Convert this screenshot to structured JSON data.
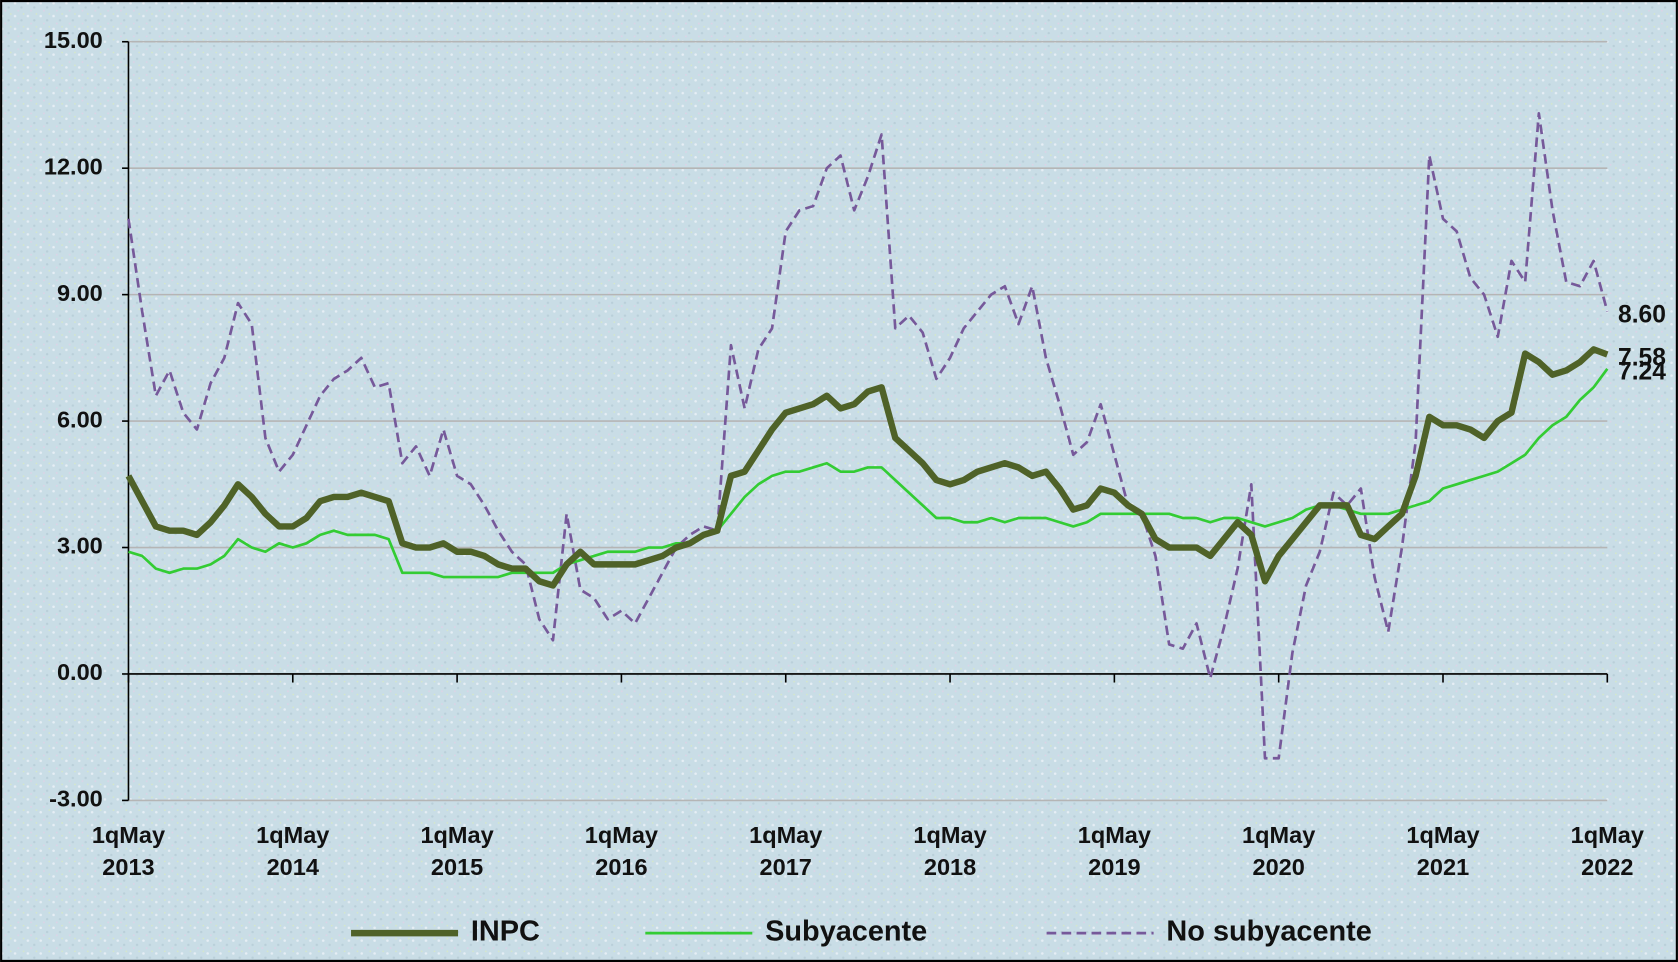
{
  "chart_data": {
    "type": "line",
    "categories": [
      "1qMay 2013",
      null,
      null,
      null,
      null,
      null,
      null,
      null,
      null,
      null,
      null,
      null,
      "1qMay 2014",
      null,
      null,
      null,
      null,
      null,
      null,
      null,
      null,
      null,
      null,
      null,
      "1qMay 2015",
      null,
      null,
      null,
      null,
      null,
      null,
      null,
      null,
      null,
      null,
      null,
      "1qMay 2016",
      null,
      null,
      null,
      null,
      null,
      null,
      null,
      null,
      null,
      null,
      null,
      "1qMay 2017",
      null,
      null,
      null,
      null,
      null,
      null,
      null,
      null,
      null,
      null,
      null,
      "1qMay 2018",
      null,
      null,
      null,
      null,
      null,
      null,
      null,
      null,
      null,
      null,
      null,
      "1qMay 2019",
      null,
      null,
      null,
      null,
      null,
      null,
      null,
      null,
      null,
      null,
      null,
      "1qMay 2020",
      null,
      null,
      null,
      null,
      null,
      null,
      null,
      null,
      null,
      null,
      null,
      "1qMay 2021",
      null,
      null,
      null,
      null,
      null,
      null,
      null,
      null,
      null,
      null,
      null,
      "1qMay 2022"
    ],
    "ylim": [
      -3,
      15
    ],
    "yticks": [
      {
        "value": -3,
        "label": "-3.00"
      },
      {
        "value": 0,
        "label": "0.00"
      },
      {
        "value": 3,
        "label": "3.00"
      },
      {
        "value": 6,
        "label": "6.00"
      },
      {
        "value": 9,
        "label": "9.00"
      },
      {
        "value": 12,
        "label": "12.00"
      },
      {
        "value": 15,
        "label": "15.00"
      }
    ],
    "grid": true,
    "legend": "bottom",
    "series": [
      {
        "name": "INPC",
        "color": "#4f6228",
        "style": "solid",
        "values": [
          4.7,
          4.1,
          3.5,
          3.4,
          3.4,
          3.3,
          3.6,
          4.0,
          4.5,
          4.2,
          3.8,
          3.5,
          3.5,
          3.7,
          4.1,
          4.2,
          4.2,
          4.3,
          4.2,
          4.1,
          3.1,
          3.0,
          3.0,
          3.1,
          2.9,
          2.9,
          2.8,
          2.6,
          2.5,
          2.5,
          2.2,
          2.1,
          2.6,
          2.9,
          2.6,
          2.6,
          2.6,
          2.6,
          2.7,
          2.8,
          3.0,
          3.1,
          3.3,
          3.4,
          4.7,
          4.8,
          5.3,
          5.8,
          6.2,
          6.3,
          6.4,
          6.6,
          6.3,
          6.4,
          6.7,
          6.8,
          5.6,
          5.3,
          5.0,
          4.6,
          4.5,
          4.6,
          4.8,
          4.9,
          5.0,
          4.9,
          4.7,
          4.8,
          4.4,
          3.9,
          4.0,
          4.4,
          4.3,
          4.0,
          3.8,
          3.2,
          3.0,
          3.0,
          3.0,
          2.8,
          3.2,
          3.6,
          3.3,
          2.2,
          2.8,
          3.2,
          3.6,
          4.0,
          4.0,
          4.0,
          3.3,
          3.2,
          3.5,
          3.8,
          4.7,
          6.1,
          5.9,
          5.9,
          5.8,
          5.6,
          6.0,
          6.2,
          7.6,
          7.4,
          7.1,
          7.2,
          7.4,
          7.7,
          7.58
        ],
        "value_labels": [
          null,
          null,
          null,
          null,
          null,
          null,
          null,
          null,
          null,
          null,
          null,
          null,
          null,
          null,
          null,
          null,
          null,
          null,
          null,
          null,
          null,
          null,
          null,
          null,
          null,
          null,
          null,
          null,
          null,
          null,
          null,
          null,
          null,
          null,
          null,
          null,
          null,
          null,
          null,
          null,
          null,
          null,
          null,
          null,
          null,
          null,
          null,
          null,
          null,
          null,
          null,
          null,
          null,
          null,
          null,
          null,
          null,
          null,
          null,
          null,
          null,
          null,
          null,
          null,
          null,
          null,
          null,
          null,
          null,
          null,
          null,
          null,
          null,
          null,
          null,
          null,
          null,
          null,
          null,
          null,
          null,
          null,
          null,
          null,
          null,
          null,
          null,
          null,
          null,
          null,
          null,
          null,
          null,
          null,
          null,
          null,
          null,
          null,
          null,
          null,
          null,
          null,
          null,
          null,
          null,
          null,
          null,
          null,
          "7.58"
        ]
      },
      {
        "name": "Subyacente",
        "color": "#33cc33",
        "style": "thin",
        "values": [
          2.9,
          2.8,
          2.5,
          2.4,
          2.5,
          2.5,
          2.6,
          2.8,
          3.2,
          3.0,
          2.9,
          3.1,
          3.0,
          3.1,
          3.3,
          3.4,
          3.3,
          3.3,
          3.3,
          3.2,
          2.4,
          2.4,
          2.4,
          2.3,
          2.3,
          2.3,
          2.3,
          2.3,
          2.4,
          2.4,
          2.4,
          2.4,
          2.6,
          2.7,
          2.8,
          2.9,
          2.9,
          2.9,
          3.0,
          3.0,
          3.1,
          3.1,
          3.3,
          3.4,
          3.8,
          4.2,
          4.5,
          4.7,
          4.8,
          4.8,
          4.9,
          5.0,
          4.8,
          4.8,
          4.9,
          4.9,
          4.6,
          4.3,
          4.0,
          3.7,
          3.7,
          3.6,
          3.6,
          3.7,
          3.6,
          3.7,
          3.7,
          3.7,
          3.6,
          3.5,
          3.6,
          3.8,
          3.8,
          3.8,
          3.8,
          3.8,
          3.8,
          3.7,
          3.7,
          3.6,
          3.7,
          3.7,
          3.6,
          3.5,
          3.6,
          3.7,
          3.9,
          4.0,
          4.0,
          3.9,
          3.8,
          3.8,
          3.8,
          3.9,
          4.0,
          4.1,
          4.4,
          4.5,
          4.6,
          4.7,
          4.8,
          5.0,
          5.2,
          5.6,
          5.9,
          6.1,
          6.5,
          6.8,
          7.24
        ],
        "value_labels": [
          null,
          null,
          null,
          null,
          null,
          null,
          null,
          null,
          null,
          null,
          null,
          null,
          null,
          null,
          null,
          null,
          null,
          null,
          null,
          null,
          null,
          null,
          null,
          null,
          null,
          null,
          null,
          null,
          null,
          null,
          null,
          null,
          null,
          null,
          null,
          null,
          null,
          null,
          null,
          null,
          null,
          null,
          null,
          null,
          null,
          null,
          null,
          null,
          null,
          null,
          null,
          null,
          null,
          null,
          null,
          null,
          null,
          null,
          null,
          null,
          null,
          null,
          null,
          null,
          null,
          null,
          null,
          null,
          null,
          null,
          null,
          null,
          null,
          null,
          null,
          null,
          null,
          null,
          null,
          null,
          null,
          null,
          null,
          null,
          null,
          null,
          null,
          null,
          null,
          null,
          null,
          null,
          null,
          null,
          null,
          null,
          null,
          null,
          null,
          null,
          null,
          null,
          null,
          null,
          null,
          null,
          null,
          null,
          "7.24"
        ]
      },
      {
        "name": "No subyacente",
        "color": "#76599a",
        "style": "dashed",
        "values": [
          10.8,
          8.6,
          6.6,
          7.2,
          6.2,
          5.8,
          6.9,
          7.5,
          8.8,
          8.3,
          5.6,
          4.8,
          5.2,
          5.9,
          6.6,
          7.0,
          7.2,
          7.5,
          6.8,
          6.9,
          5.0,
          5.4,
          4.7,
          5.8,
          4.7,
          4.5,
          4.0,
          3.4,
          2.9,
          2.6,
          1.3,
          0.8,
          3.8,
          2.0,
          1.8,
          1.3,
          1.5,
          1.2,
          1.8,
          2.4,
          3.0,
          3.3,
          3.5,
          3.4,
          7.8,
          6.3,
          7.7,
          8.2,
          10.5,
          11.0,
          11.1,
          12.0,
          12.3,
          11.0,
          11.8,
          12.8,
          8.2,
          8.5,
          8.1,
          7.0,
          7.5,
          8.2,
          8.6,
          9.0,
          9.2,
          8.3,
          9.2,
          7.5,
          6.4,
          5.2,
          5.5,
          6.4,
          5.2,
          4.0,
          3.8,
          2.8,
          0.7,
          0.6,
          1.2,
          -0.1,
          1.1,
          2.5,
          4.5,
          -2.0,
          -2.0,
          0.5,
          2.1,
          2.9,
          4.3,
          4.0,
          4.4,
          2.3,
          1.0,
          3.0,
          5.5,
          12.3,
          10.8,
          10.5,
          9.4,
          9.0,
          8.0,
          9.8,
          9.3,
          13.3,
          11.0,
          9.3,
          9.2,
          9.8,
          8.6
        ],
        "value_labels": [
          null,
          null,
          null,
          null,
          null,
          null,
          null,
          null,
          null,
          null,
          null,
          null,
          null,
          null,
          null,
          null,
          null,
          null,
          null,
          null,
          null,
          null,
          null,
          null,
          null,
          null,
          null,
          null,
          null,
          null,
          null,
          null,
          null,
          null,
          null,
          null,
          null,
          null,
          null,
          null,
          null,
          null,
          null,
          null,
          null,
          null,
          null,
          null,
          null,
          null,
          null,
          null,
          null,
          null,
          null,
          null,
          null,
          null,
          null,
          null,
          null,
          null,
          null,
          null,
          null,
          null,
          null,
          null,
          null,
          null,
          null,
          null,
          null,
          null,
          null,
          null,
          null,
          null,
          null,
          null,
          null,
          null,
          null,
          null,
          null,
          null,
          null,
          null,
          null,
          null,
          null,
          null,
          null,
          null,
          null,
          null,
          null,
          null,
          null,
          null,
          null,
          null,
          null,
          null,
          null,
          null,
          null,
          null,
          "8.60"
        ]
      }
    ]
  }
}
